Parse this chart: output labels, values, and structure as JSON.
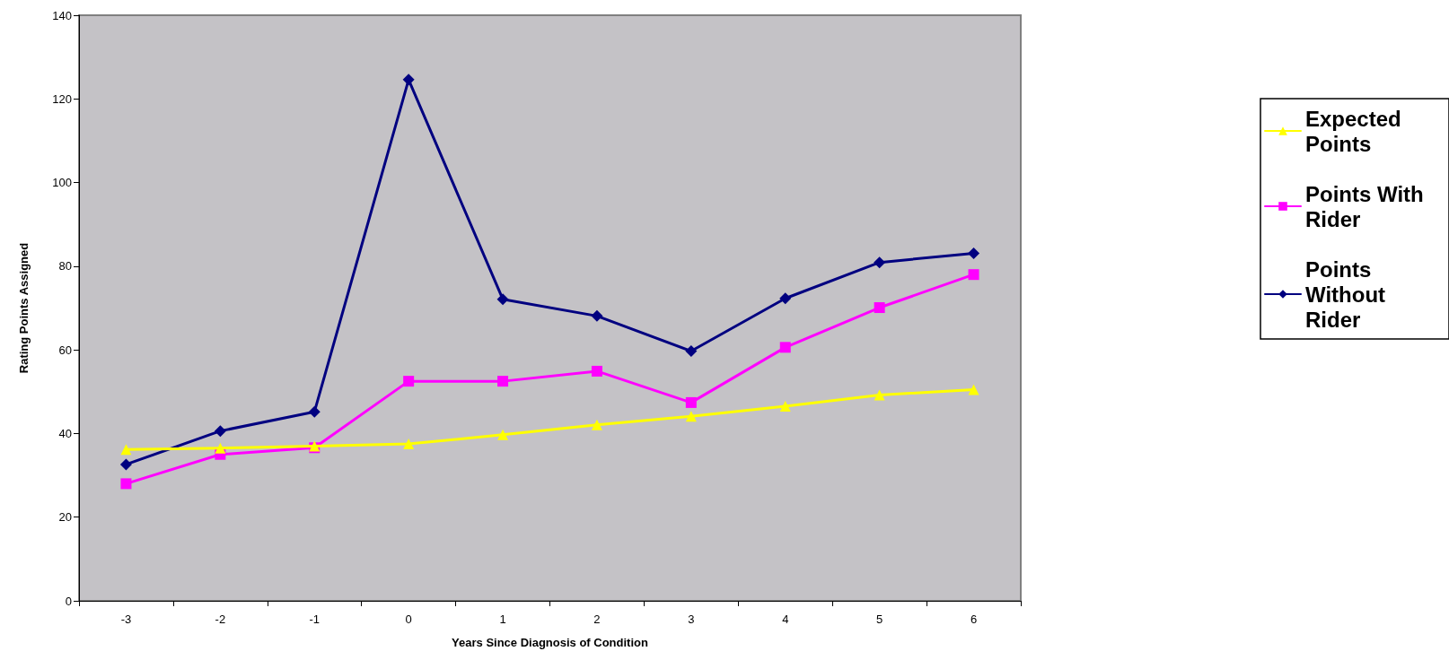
{
  "chart_data": {
    "type": "line",
    "xlabel": "Years Since Diagnosis of Condition",
    "ylabel": "Rating Points Assigned",
    "categories": [
      "-3",
      "-2",
      "-1",
      "0",
      "1",
      "2",
      "3",
      "4",
      "5",
      "6"
    ],
    "series": [
      {
        "name": "Expected Points",
        "color": "#ffff00",
        "marker": "triangle",
        "values": [
          36.2,
          36.5,
          37,
          37.5,
          39.7,
          42.1,
          44.1,
          46.5,
          49.2,
          50.5
        ]
      },
      {
        "name": "Points With Rider",
        "color": "#ff00ff",
        "marker": "square",
        "values": [
          28,
          35,
          36.6,
          52.5,
          52.5,
          54.9,
          47.4,
          60.6,
          70.1,
          78
        ]
      },
      {
        "name": "Points Without Rider",
        "color": "#000080",
        "marker": "diamond",
        "values": [
          32.6,
          40.6,
          45.2,
          124.6,
          72.1,
          68.1,
          59.7,
          72.3,
          80.9,
          83.1
        ]
      }
    ],
    "ylim": [
      0,
      140
    ],
    "yticks": [
      0,
      20,
      40,
      60,
      80,
      100,
      120,
      140
    ],
    "grid": false,
    "legend": "right",
    "line_style": "solid"
  }
}
